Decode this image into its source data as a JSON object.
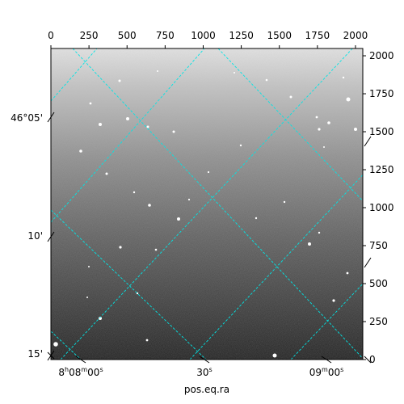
{
  "chart_data": {
    "type": "heatmap",
    "description_units": "pixel axes of a sky image with an overlaid RA/Dec WCS grid",
    "colormap": "grayscale",
    "pixel_axes": {
      "xlim": [
        0,
        2048
      ],
      "ylim": [
        0,
        2048
      ],
      "top_ticks": [
        0,
        250,
        500,
        750,
        1000,
        1250,
        1500,
        1750,
        2000
      ],
      "right_ticks": [
        0,
        250,
        500,
        750,
        1000,
        1250,
        1500,
        1750,
        2000
      ]
    },
    "world_axes": {
      "xlabel": "pos.eq.ra",
      "ra_tick_labels": [
        {
          "main": "8",
          "sup1": "h",
          "mid": "08",
          "sup2": "m",
          "tail": "00",
          "sup3": "s"
        },
        {
          "main": "",
          "sup1": "",
          "mid": "",
          "sup2": "",
          "tail": "30",
          "sup3": "s"
        },
        {
          "main": "",
          "sup1": "",
          "mid": "09",
          "sup2": "m",
          "tail": "00",
          "sup3": "s"
        }
      ],
      "dec_tick_labels": [
        "46°05'",
        "10'",
        "15'"
      ]
    },
    "grid": {
      "on": true,
      "color": "#00e5e5",
      "style": "dashed"
    }
  }
}
